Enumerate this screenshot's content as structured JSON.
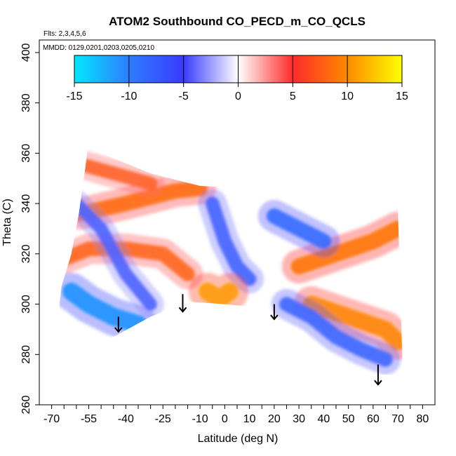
{
  "chart_data": {
    "type": "heatmap",
    "title": "ATOM2 Southbound CO_PECD_m_CO_QCLS",
    "subtitle_flights": "Flts: 2,3,4,5,6",
    "subtitle_dates": "MMDD: 0129,0201,0203,0205,0210",
    "xlabel": "Latitude (deg N)",
    "ylabel": "Theta (C)",
    "xlim": [
      -75,
      85
    ],
    "ylim": [
      260,
      405
    ],
    "x_ticks": [
      -70,
      -65,
      -60,
      -55,
      -50,
      -45,
      -40,
      -35,
      -30,
      -25,
      -20,
      -15,
      -10,
      -5,
      0,
      5,
      10,
      15,
      20,
      25,
      30,
      35,
      40,
      45,
      50,
      55,
      60,
      65,
      70,
      75,
      80
    ],
    "x_tick_labels": [
      "-70",
      "",
      "",
      "-55",
      "",
      "",
      "-40",
      "",
      "",
      "-25",
      "",
      "",
      "-10",
      "",
      "0",
      "",
      "10",
      "",
      "20",
      "",
      "30",
      "",
      "40",
      "",
      "50",
      "",
      "60",
      "",
      "70",
      "",
      "80"
    ],
    "y_ticks": [
      260,
      280,
      300,
      320,
      340,
      360,
      380,
      400
    ],
    "y_tick_labels": [
      "260",
      "280",
      "300",
      "320",
      "340",
      "360",
      "380",
      "400"
    ],
    "colorbar": {
      "min": -15,
      "max": 15,
      "ticks": [
        -15,
        -10,
        -5,
        0,
        5,
        10,
        15
      ],
      "tick_labels": [
        "-15",
        "-10",
        "-5",
        "0",
        "5",
        "10",
        "15"
      ],
      "colors": [
        {
          "value": -15,
          "color": "#00e8ff"
        },
        {
          "value": -10,
          "color": "#2e7dff"
        },
        {
          "value": -5,
          "color": "#3a3aff"
        },
        {
          "value": 0,
          "color": "#ffffff"
        },
        {
          "value": 5,
          "color": "#ff2a2a"
        },
        {
          "value": 10,
          "color": "#ff8a00"
        },
        {
          "value": 15,
          "color": "#ffff00"
        }
      ]
    },
    "domain_outline": [
      [
        -70,
        274
      ],
      [
        -67,
        284
      ],
      [
        -67,
        298
      ],
      [
        -66,
        307
      ],
      [
        -62,
        320
      ],
      [
        -59,
        336
      ],
      [
        -56,
        357
      ],
      [
        -55,
        368
      ],
      [
        -50,
        360
      ],
      [
        -30,
        352
      ],
      [
        -10,
        347
      ],
      [
        10,
        346
      ],
      [
        30,
        343
      ],
      [
        50,
        338
      ],
      [
        70,
        338
      ],
      [
        72,
        272
      ],
      [
        62,
        272
      ],
      [
        50,
        275
      ],
      [
        40,
        282
      ],
      [
        30,
        290
      ],
      [
        20,
        294
      ],
      [
        10,
        299
      ],
      [
        0,
        300
      ],
      [
        -15,
        301
      ],
      [
        -30,
        295
      ],
      [
        -45,
        287
      ],
      [
        -55,
        284
      ],
      [
        -60,
        278
      ],
      [
        -68,
        275
      ]
    ],
    "features": [
      {
        "type": "band",
        "sign": "positive",
        "value": 9,
        "path": [
          [
            -65,
            318
          ],
          [
            -55,
            322
          ],
          [
            -40,
            322
          ],
          [
            -25,
            320
          ],
          [
            -15,
            312
          ]
        ]
      },
      {
        "type": "band",
        "sign": "positive",
        "value": 10,
        "path": [
          [
            -58,
            336
          ],
          [
            -40,
            340
          ],
          [
            -20,
            345
          ],
          [
            -10,
            346
          ]
        ]
      },
      {
        "type": "band",
        "sign": "positive",
        "value": 8,
        "path": [
          [
            -56,
            355
          ],
          [
            -45,
            352
          ],
          [
            -30,
            348
          ]
        ]
      },
      {
        "type": "band",
        "sign": "negative",
        "value": -13,
        "path": [
          [
            -62,
            305
          ],
          [
            -55,
            300
          ],
          [
            -45,
            295
          ],
          [
            -35,
            292
          ]
        ]
      },
      {
        "type": "band",
        "sign": "negative",
        "value": -7,
        "path": [
          [
            -60,
            340
          ],
          [
            -50,
            330
          ],
          [
            -40,
            312
          ],
          [
            -30,
            300
          ]
        ]
      },
      {
        "type": "band",
        "sign": "negative",
        "value": -8,
        "path": [
          [
            -5,
            340
          ],
          [
            0,
            325
          ],
          [
            5,
            315
          ],
          [
            10,
            310
          ]
        ]
      },
      {
        "type": "band",
        "sign": "positive",
        "value": 11,
        "path": [
          [
            30,
            315
          ],
          [
            45,
            320
          ],
          [
            60,
            325
          ],
          [
            70,
            330
          ]
        ]
      },
      {
        "type": "band",
        "sign": "positive",
        "value": 12,
        "path": [
          [
            35,
            300
          ],
          [
            50,
            295
          ],
          [
            65,
            290
          ],
          [
            70,
            285
          ]
        ]
      },
      {
        "type": "band",
        "sign": "negative",
        "value": -10,
        "path": [
          [
            20,
            335
          ],
          [
            30,
            330
          ],
          [
            40,
            325
          ]
        ]
      },
      {
        "type": "band",
        "sign": "negative",
        "value": -9,
        "path": [
          [
            25,
            300
          ],
          [
            35,
            295
          ],
          [
            45,
            287
          ],
          [
            55,
            282
          ],
          [
            65,
            278
          ]
        ]
      },
      {
        "type": "band",
        "sign": "positive",
        "value": 13,
        "path": [
          [
            -7,
            305
          ],
          [
            -2,
            302
          ],
          [
            2,
            305
          ]
        ]
      }
    ],
    "arrows": [
      {
        "lat": -43,
        "theta_top": 295,
        "theta_bottom": 289
      },
      {
        "lat": -17,
        "theta_top": 304,
        "theta_bottom": 297
      },
      {
        "lat": 20,
        "theta_top": 300,
        "theta_bottom": 294
      },
      {
        "lat": 62,
        "theta_top": 276,
        "theta_bottom": 268
      }
    ]
  }
}
